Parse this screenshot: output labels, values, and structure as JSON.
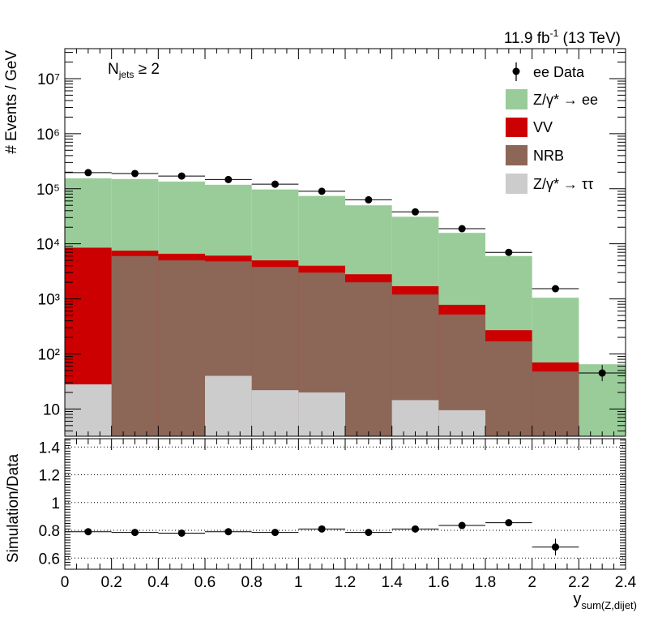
{
  "header": {
    "lumi_value": "11.9 fb",
    "lumi_exp": "-1",
    "energy": " (13 TeV)",
    "selection_main": "N",
    "selection_sub": "jets",
    "selection_tail": " ≥ 2"
  },
  "legend": {
    "data": "ee Data",
    "dy_ee": "Z/γ* → ee",
    "vv": "VV",
    "nrb": "NRB",
    "dy_tautau": "Z/γ* → ττ"
  },
  "colors": {
    "dy_ee": "#99cc99",
    "vv": "#cc0000",
    "nrb": "#8c6657",
    "dy_tautau": "#cccccc",
    "data": "#000000"
  },
  "chart_data": [
    {
      "type": "stacked-histogram",
      "ylabel": "# Events / GeV",
      "yscale": "log",
      "ylim": [
        3.2,
        35000000.0
      ],
      "xlim": [
        0,
        2.4
      ],
      "bin_edges": [
        0,
        0.2,
        0.4,
        0.6,
        0.8,
        1.0,
        1.2,
        1.4,
        1.6,
        1.8,
        2.0,
        2.2,
        2.4
      ],
      "stack_order": [
        "Z/γ* → ττ",
        "NRB",
        "VV",
        "Z/γ* → ee"
      ],
      "stack_totals": {
        "Z/γ* → ττ": [
          28,
          0,
          0,
          40,
          22,
          20,
          0,
          14.5,
          9.5,
          0,
          0,
          0
        ],
        "NRB": [
          28,
          6000,
          5000,
          4800,
          3800,
          3000,
          2000,
          1200,
          520,
          170,
          48,
          0
        ],
        "VV": [
          8500,
          7500,
          6600,
          6100,
          5000,
          4000,
          2800,
          1700,
          780,
          270,
          70,
          0
        ],
        "Z/γ* → ee": [
          155000,
          150000,
          135000,
          118000,
          97000,
          74000,
          50000,
          31000,
          15800,
          6000,
          1050,
          65
        ]
      },
      "data_points": [
        {
          "x": 0.1,
          "y": 196000
        },
        {
          "x": 0.3,
          "y": 189000
        },
        {
          "x": 0.5,
          "y": 170000
        },
        {
          "x": 0.7,
          "y": 147000
        },
        {
          "x": 0.9,
          "y": 121000
        },
        {
          "x": 1.1,
          "y": 90000
        },
        {
          "x": 1.3,
          "y": 63000
        },
        {
          "x": 1.5,
          "y": 38000
        },
        {
          "x": 1.7,
          "y": 18800
        },
        {
          "x": 1.9,
          "y": 7000
        },
        {
          "x": 2.1,
          "y": 1530
        },
        {
          "x": 2.3,
          "y": 45,
          "err_low": 32,
          "err_high": 63
        }
      ],
      "y_ticks": [
        "10",
        "10²",
        "10³",
        "10⁴",
        "10⁵",
        "10⁶",
        "10⁷"
      ]
    },
    {
      "type": "scatter",
      "ylabel": "Simulation/Data",
      "xlabel": "y_sum(Z,dijet)",
      "xlim": [
        0,
        2.4
      ],
      "ylim": [
        0.52,
        1.46
      ],
      "y_ticks": [
        0.6,
        0.8,
        1,
        1.2,
        1.4
      ],
      "x_ticks": [
        0,
        0.2,
        0.4,
        0.6,
        0.8,
        1,
        1.2,
        1.4,
        1.6,
        1.8,
        2,
        2.2,
        2.4
      ],
      "grid": "horizontal dotted",
      "points": [
        {
          "x": 0.1,
          "y": 0.79
        },
        {
          "x": 0.3,
          "y": 0.785
        },
        {
          "x": 0.5,
          "y": 0.78
        },
        {
          "x": 0.7,
          "y": 0.79
        },
        {
          "x": 0.9,
          "y": 0.785
        },
        {
          "x": 1.1,
          "y": 0.81
        },
        {
          "x": 1.3,
          "y": 0.785
        },
        {
          "x": 1.5,
          "y": 0.81
        },
        {
          "x": 1.7,
          "y": 0.835
        },
        {
          "x": 1.9,
          "y": 0.855,
          "err": 0.02
        },
        {
          "x": 2.1,
          "y": 0.68,
          "err": 0.06
        }
      ]
    }
  ]
}
